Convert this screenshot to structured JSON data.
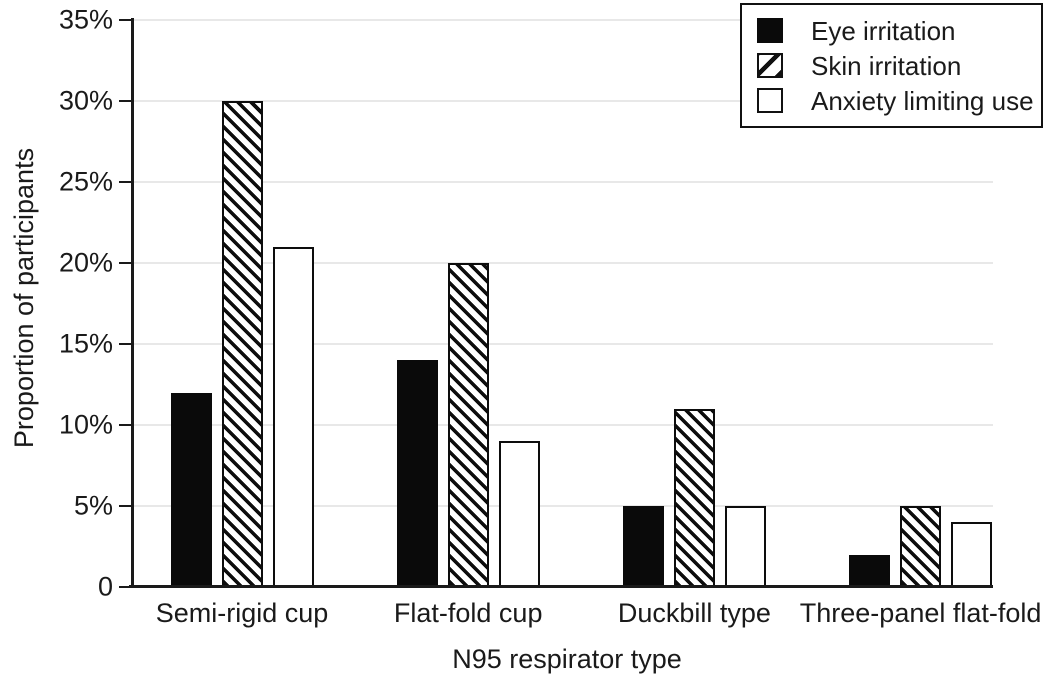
{
  "figure": {
    "background": "#ffffff"
  },
  "chart_data": {
    "type": "bar",
    "title": "",
    "xlabel": "N95 respirator type",
    "ylabel": "Proportion of participants",
    "categories": [
      "Semi-rigid cup",
      "Flat-fold cup",
      "Duckbill type",
      "Three-panel flat-fold"
    ],
    "series": [
      {
        "name": "Eye irritation",
        "style": "solid-black",
        "values": [
          12,
          14,
          5,
          2
        ]
      },
      {
        "name": "Skin irritation",
        "style": "diagonal-hatch",
        "values": [
          30,
          20,
          11,
          5
        ]
      },
      {
        "name": "Anxiety limiting use",
        "style": "white-outline",
        "values": [
          21,
          9,
          5,
          4
        ]
      }
    ],
    "ylim": [
      0,
      35
    ],
    "y_ticks": [
      {
        "value": 0,
        "label": "0"
      },
      {
        "value": 5,
        "label": "5%"
      },
      {
        "value": 10,
        "label": "10%"
      },
      {
        "value": 15,
        "label": "15%"
      },
      {
        "value": 20,
        "label": "20%"
      },
      {
        "value": 25,
        "label": "25%"
      },
      {
        "value": 30,
        "label": "30%"
      },
      {
        "value": 35,
        "label": "35%"
      }
    ],
    "grid": true,
    "legend_position": "top-right",
    "colors": {
      "bar_fill": "#0a0a0a",
      "bar_outline": "#0d0d0d",
      "grid": "#e8e8e8",
      "axis": "#1a1a1a",
      "text": "#1a1a1a",
      "background": "#ffffff"
    }
  }
}
